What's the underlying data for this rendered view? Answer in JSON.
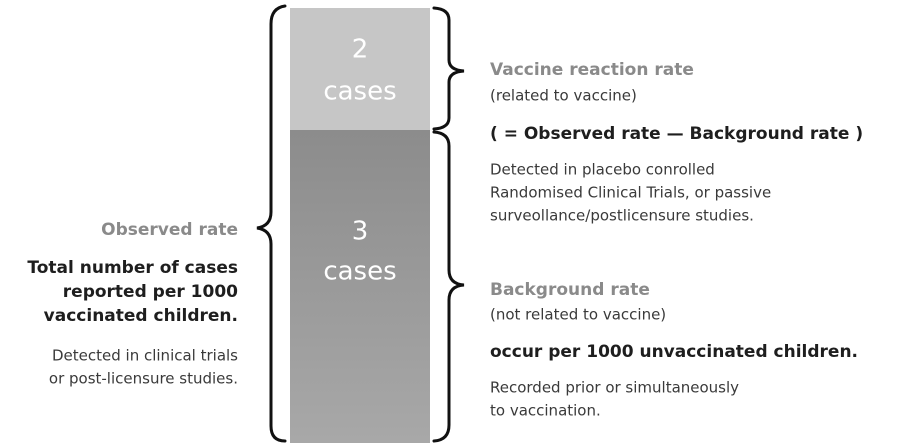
{
  "bar": {
    "top": {
      "number": "2",
      "unit": "cases"
    },
    "bottom": {
      "number": "3",
      "unit": "cases"
    }
  },
  "observed": {
    "title": "Observed rate",
    "definition": [
      "Total number of cases",
      "reported per 1000",
      "vaccinated children."
    ],
    "detection": [
      "Detected in clinical trials",
      "or post-licensure studies."
    ]
  },
  "vaccine_reaction": {
    "title": "Vaccine reaction rate",
    "subtitle": "(related to vaccine)",
    "formula": "( = Observed rate — Background rate )",
    "detection": [
      "Detected in placebo conrolled",
      "Randomised Clinical Trials, or passive",
      "surveollance/postlicensure studies."
    ]
  },
  "background": {
    "title": "Background rate",
    "subtitle": "(not related to vaccine)",
    "definition": "occur per 1000 unvaccinated children.",
    "detection": [
      "Recorded prior or simultaneously",
      "to vaccination."
    ]
  }
}
